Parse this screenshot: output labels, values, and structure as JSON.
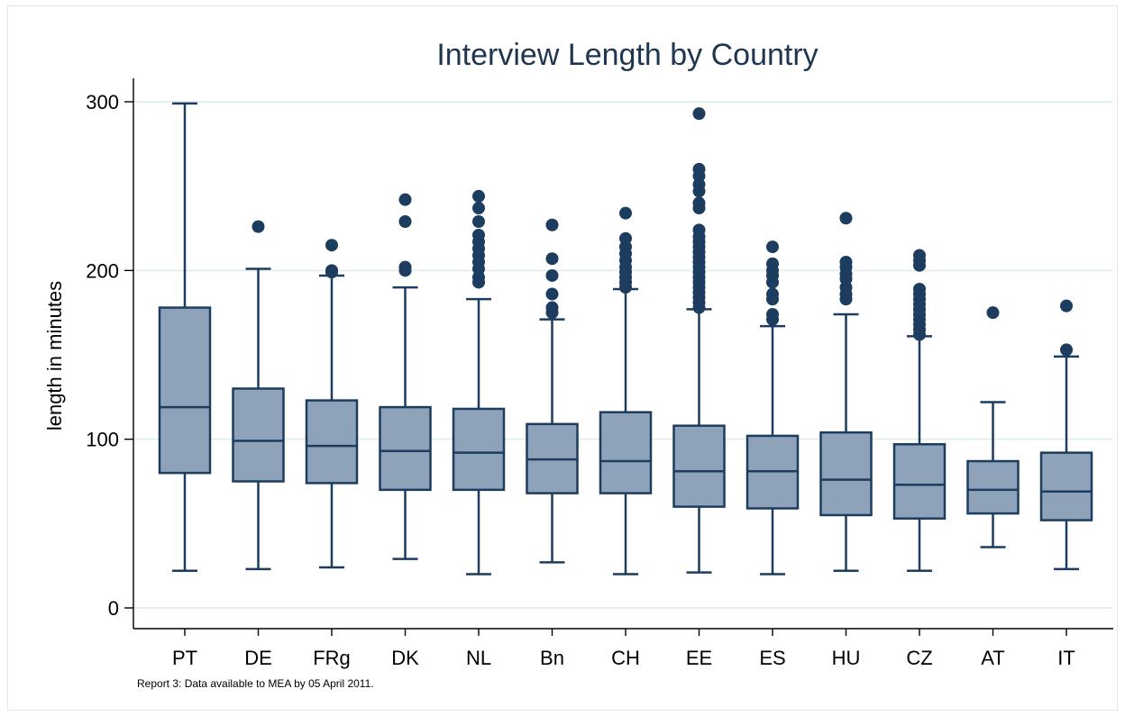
{
  "chart_data": {
    "type": "box",
    "title": "Interview Length by Country",
    "xlabel": "",
    "ylabel": "length in minutes",
    "ylim": [
      -12,
      315
    ],
    "yticks": [
      0,
      100,
      200,
      300
    ],
    "ytick_labels": [
      "0",
      "100",
      "200",
      "300"
    ],
    "grid": true,
    "note": "Report 3: Data available to MEA by 05 April 2011.",
    "colors": {
      "box_fill": "#8ea3b9",
      "stroke": "#1c3d5f",
      "outlier": "#1c3d5f",
      "grid": "#e6efef",
      "title": "#1f3650"
    },
    "categories": [
      "PT",
      "DE",
      "FRg",
      "DK",
      "NL",
      "Bn",
      "CH",
      "EE",
      "ES",
      "HU",
      "CZ",
      "AT",
      "IT"
    ],
    "boxes": [
      {
        "label": "PT",
        "min": 22,
        "q1": 80,
        "median": 119,
        "q3": 178,
        "max": 299,
        "outliers": []
      },
      {
        "label": "DE",
        "min": 23,
        "q1": 75,
        "median": 99,
        "q3": 130,
        "max": 201,
        "outliers": [
          226
        ]
      },
      {
        "label": "FRg",
        "min": 24,
        "q1": 74,
        "median": 96,
        "q3": 123,
        "max": 197,
        "outliers": [
          199,
          200,
          215
        ]
      },
      {
        "label": "DK",
        "min": 29,
        "q1": 70,
        "median": 93,
        "q3": 119,
        "max": 190,
        "outliers": [
          200,
          202,
          229,
          242
        ]
      },
      {
        "label": "NL",
        "min": 20,
        "q1": 70,
        "median": 92,
        "q3": 118,
        "max": 183,
        "outliers": [
          193,
          196,
          201,
          205,
          209,
          213,
          217,
          221,
          229,
          237,
          244
        ]
      },
      {
        "label": "Bn",
        "min": 27,
        "q1": 68,
        "median": 88,
        "q3": 109,
        "max": 171,
        "outliers": [
          175,
          178,
          186,
          197,
          207,
          227
        ]
      },
      {
        "label": "CH",
        "min": 20,
        "q1": 68,
        "median": 87,
        "q3": 116,
        "max": 189,
        "outliers": [
          190,
          193,
          196,
          199,
          202,
          206,
          210,
          214,
          219,
          234
        ]
      },
      {
        "label": "EE",
        "min": 21,
        "q1": 60,
        "median": 81,
        "q3": 108,
        "max": 177,
        "outliers": [
          178,
          181,
          184,
          187,
          190,
          193,
          196,
          199,
          202,
          205,
          208,
          211,
          214,
          217,
          220,
          224,
          237,
          240,
          247,
          251,
          256,
          260,
          293
        ]
      },
      {
        "label": "ES",
        "min": 20,
        "q1": 59,
        "median": 81,
        "q3": 102,
        "max": 167,
        "outliers": [
          171,
          174,
          183,
          186,
          193,
          197,
          200,
          204,
          214
        ]
      },
      {
        "label": "HU",
        "min": 22,
        "q1": 55,
        "median": 76,
        "q3": 104,
        "max": 174,
        "outliers": [
          183,
          186,
          190,
          195,
          198,
          202,
          205,
          231
        ]
      },
      {
        "label": "CZ",
        "min": 22,
        "q1": 53,
        "median": 73,
        "q3": 97,
        "max": 161,
        "outliers": [
          162,
          165,
          168,
          171,
          174,
          177,
          180,
          183,
          186,
          189,
          203,
          206,
          209
        ]
      },
      {
        "label": "AT",
        "min": 36,
        "q1": 56,
        "median": 70,
        "q3": 87,
        "max": 122,
        "outliers": [
          175
        ]
      },
      {
        "label": "IT",
        "min": 23,
        "q1": 52,
        "median": 69,
        "q3": 92,
        "max": 149,
        "outliers": [
          153,
          179
        ]
      }
    ]
  }
}
